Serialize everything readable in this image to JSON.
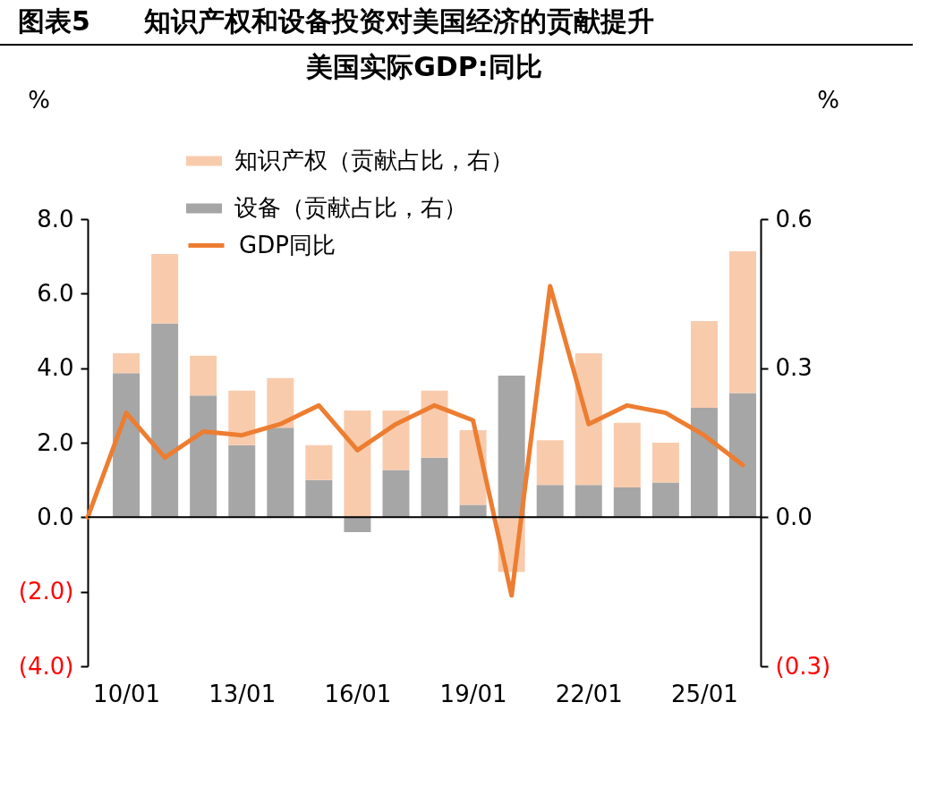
{
  "chart_data": {
    "type": "bar",
    "title": "图表5　　知识产权和设备投资对美国经济的贡献提升",
    "subtitle": "美国实际GDP:同比",
    "ylabel": "%",
    "y2label": "%",
    "categories": [
      null,
      "10/01",
      null,
      null,
      "13/01",
      null,
      null,
      "16/01",
      null,
      null,
      "19/01",
      null,
      null,
      "22/01",
      null,
      null,
      "25/01",
      null
    ],
    "stacked": true,
    "series": [
      {
        "name": "设备（贡献占比，右）",
        "color": "#a6a6a6",
        "axis": "y2",
        "values": [
          null,
          0.29,
          0.39,
          0.245,
          0.145,
          0.18,
          0.075,
          -0.03,
          0.095,
          0.12,
          0.025,
          0.285,
          0.065,
          0.065,
          0.06,
          0.07,
          0.22,
          0.25
        ]
      },
      {
        "name": "知识产权（贡献占比，右）",
        "color": "#f8cbad",
        "axis": "y2",
        "values": [
          null,
          0.04,
          0.14,
          0.08,
          0.11,
          0.1,
          0.07,
          0.215,
          0.12,
          0.135,
          0.15,
          -0.11,
          0.09,
          0.265,
          0.13,
          0.08,
          0.175,
          0.285
        ]
      },
      {
        "name": "GDP同比",
        "type": "line",
        "color": "#ed7d31",
        "values": [
          0,
          2.8,
          1.6,
          2.3,
          2.2,
          2.5,
          3.0,
          1.8,
          2.5,
          3.0,
          2.6,
          -2.1,
          6.2,
          2.5,
          3.0,
          2.8,
          2.2,
          1.4
        ]
      }
    ],
    "ylim": [
      -4,
      8
    ],
    "yticks": [
      {
        "value": -4,
        "label": "(4.0)"
      },
      {
        "value": -2,
        "label": "(2.0)"
      },
      {
        "value": 0,
        "label": "0.0"
      },
      {
        "value": 2,
        "label": "2.0"
      },
      {
        "value": 4,
        "label": "4.0"
      },
      {
        "value": 6,
        "label": "6.0"
      },
      {
        "value": 8,
        "label": "8.0"
      }
    ],
    "y2lim": [
      -0.3,
      0.6
    ],
    "y2ticks": [
      {
        "value": -0.3,
        "label": "(0.3)"
      },
      {
        "value": 0,
        "label": "0.0"
      },
      {
        "value": 0.3,
        "label": "0.3"
      },
      {
        "value": 0.6,
        "label": "0.6"
      }
    ],
    "legend": "top left",
    "marker": "none",
    "line_style": "solid"
  }
}
